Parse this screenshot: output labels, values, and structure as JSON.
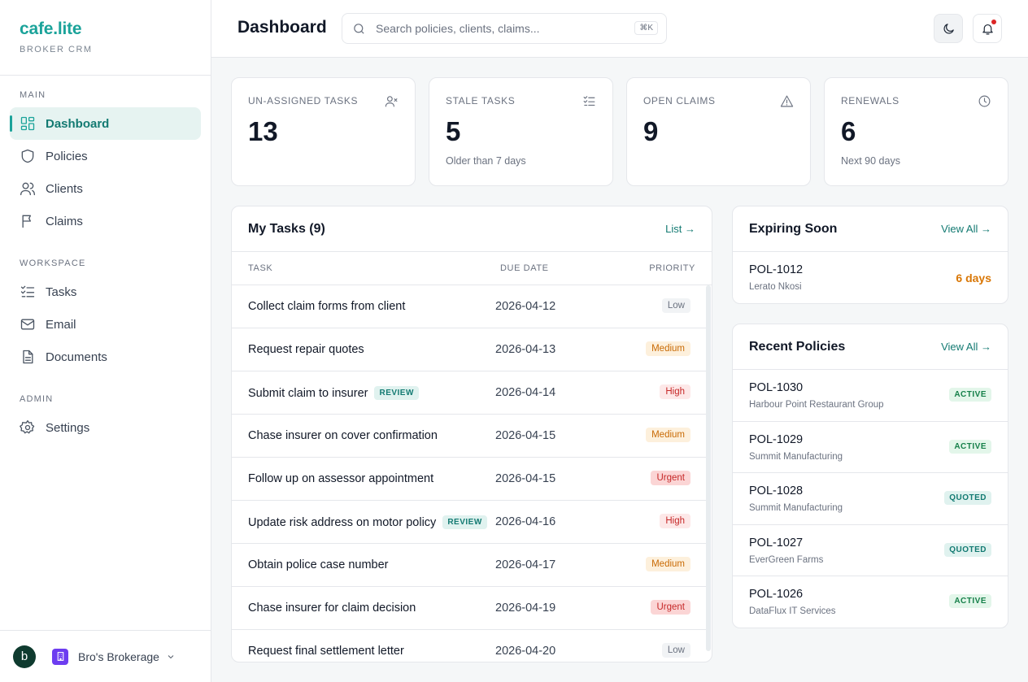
{
  "brand": {
    "name": "cafe.lite",
    "subtitle": "BROKER CRM"
  },
  "sidebar": {
    "sections": [
      {
        "label": "MAIN"
      },
      {
        "label": "WORKSPACE"
      },
      {
        "label": "ADMIN"
      }
    ],
    "items": [
      {
        "label": "Dashboard",
        "icon": "grid-icon",
        "active": true
      },
      {
        "label": "Policies",
        "icon": "shield-icon"
      },
      {
        "label": "Clients",
        "icon": "users-icon"
      },
      {
        "label": "Claims",
        "icon": "flag-icon"
      },
      {
        "label": "Tasks",
        "icon": "checklist-icon"
      },
      {
        "label": "Email",
        "icon": "mail-icon"
      },
      {
        "label": "Documents",
        "icon": "document-icon"
      },
      {
        "label": "Settings",
        "icon": "gear-icon"
      }
    ],
    "footer": {
      "avatar_initial": "b",
      "org_name": "Bro's Brokerage"
    }
  },
  "header": {
    "title": "Dashboard",
    "search_placeholder": "Search policies, clients, claims...",
    "shortcut": "⌘K"
  },
  "stats": [
    {
      "label": "UN-ASSIGNED TASKS",
      "value": "13",
      "sub": "",
      "icon": "user-x-icon"
    },
    {
      "label": "STALE TASKS",
      "value": "5",
      "sub": "Older than 7 days",
      "icon": "list-check-icon"
    },
    {
      "label": "OPEN CLAIMS",
      "value": "9",
      "sub": "",
      "icon": "alert-triangle-icon"
    },
    {
      "label": "RENEWALS",
      "value": "6",
      "sub": "Next 90 days",
      "icon": "clock-icon"
    }
  ],
  "tasks": {
    "title": "My Tasks (9)",
    "link": "List →",
    "columns": {
      "task": "TASK",
      "due": "DUE DATE",
      "priority": "PRIORITY"
    },
    "rows": [
      {
        "name": "Collect claim forms from client",
        "tag": "",
        "due": "2026-04-12",
        "priority": "Low"
      },
      {
        "name": "Request repair quotes",
        "tag": "",
        "due": "2026-04-13",
        "priority": "Medium"
      },
      {
        "name": "Submit claim to insurer",
        "tag": "REVIEW",
        "due": "2026-04-14",
        "priority": "High"
      },
      {
        "name": "Chase insurer on cover confirmation",
        "tag": "",
        "due": "2026-04-15",
        "priority": "Medium"
      },
      {
        "name": "Follow up on assessor appointment",
        "tag": "",
        "due": "2026-04-15",
        "priority": "Urgent"
      },
      {
        "name": "Update risk address on motor policy",
        "tag": "REVIEW",
        "due": "2026-04-16",
        "priority": "High"
      },
      {
        "name": "Obtain police case number",
        "tag": "",
        "due": "2026-04-17",
        "priority": "Medium"
      },
      {
        "name": "Chase insurer for claim decision",
        "tag": "",
        "due": "2026-04-19",
        "priority": "Urgent"
      },
      {
        "name": "Request final settlement letter",
        "tag": "",
        "due": "2026-04-20",
        "priority": "Low"
      }
    ]
  },
  "expiring": {
    "title": "Expiring Soon",
    "link": "View All →",
    "rows": [
      {
        "id": "POL-1012",
        "client": "Lerato Nkosi",
        "days": "6 days"
      }
    ]
  },
  "recent": {
    "title": "Recent Policies",
    "link": "View All →",
    "rows": [
      {
        "id": "POL-1030",
        "client": "Harbour Point Restaurant Group",
        "status": "ACTIVE"
      },
      {
        "id": "POL-1029",
        "client": "Summit Manufacturing",
        "status": "ACTIVE"
      },
      {
        "id": "POL-1028",
        "client": "Summit Manufacturing",
        "status": "QUOTED"
      },
      {
        "id": "POL-1027",
        "client": "EverGreen Farms",
        "status": "QUOTED"
      },
      {
        "id": "POL-1026",
        "client": "DataFlux IT Services",
        "status": "ACTIVE"
      }
    ]
  },
  "colors": {
    "accent": "#1ba39a",
    "accent_dark": "#137a72",
    "warning": "#d97706",
    "danger": "#c62828"
  }
}
